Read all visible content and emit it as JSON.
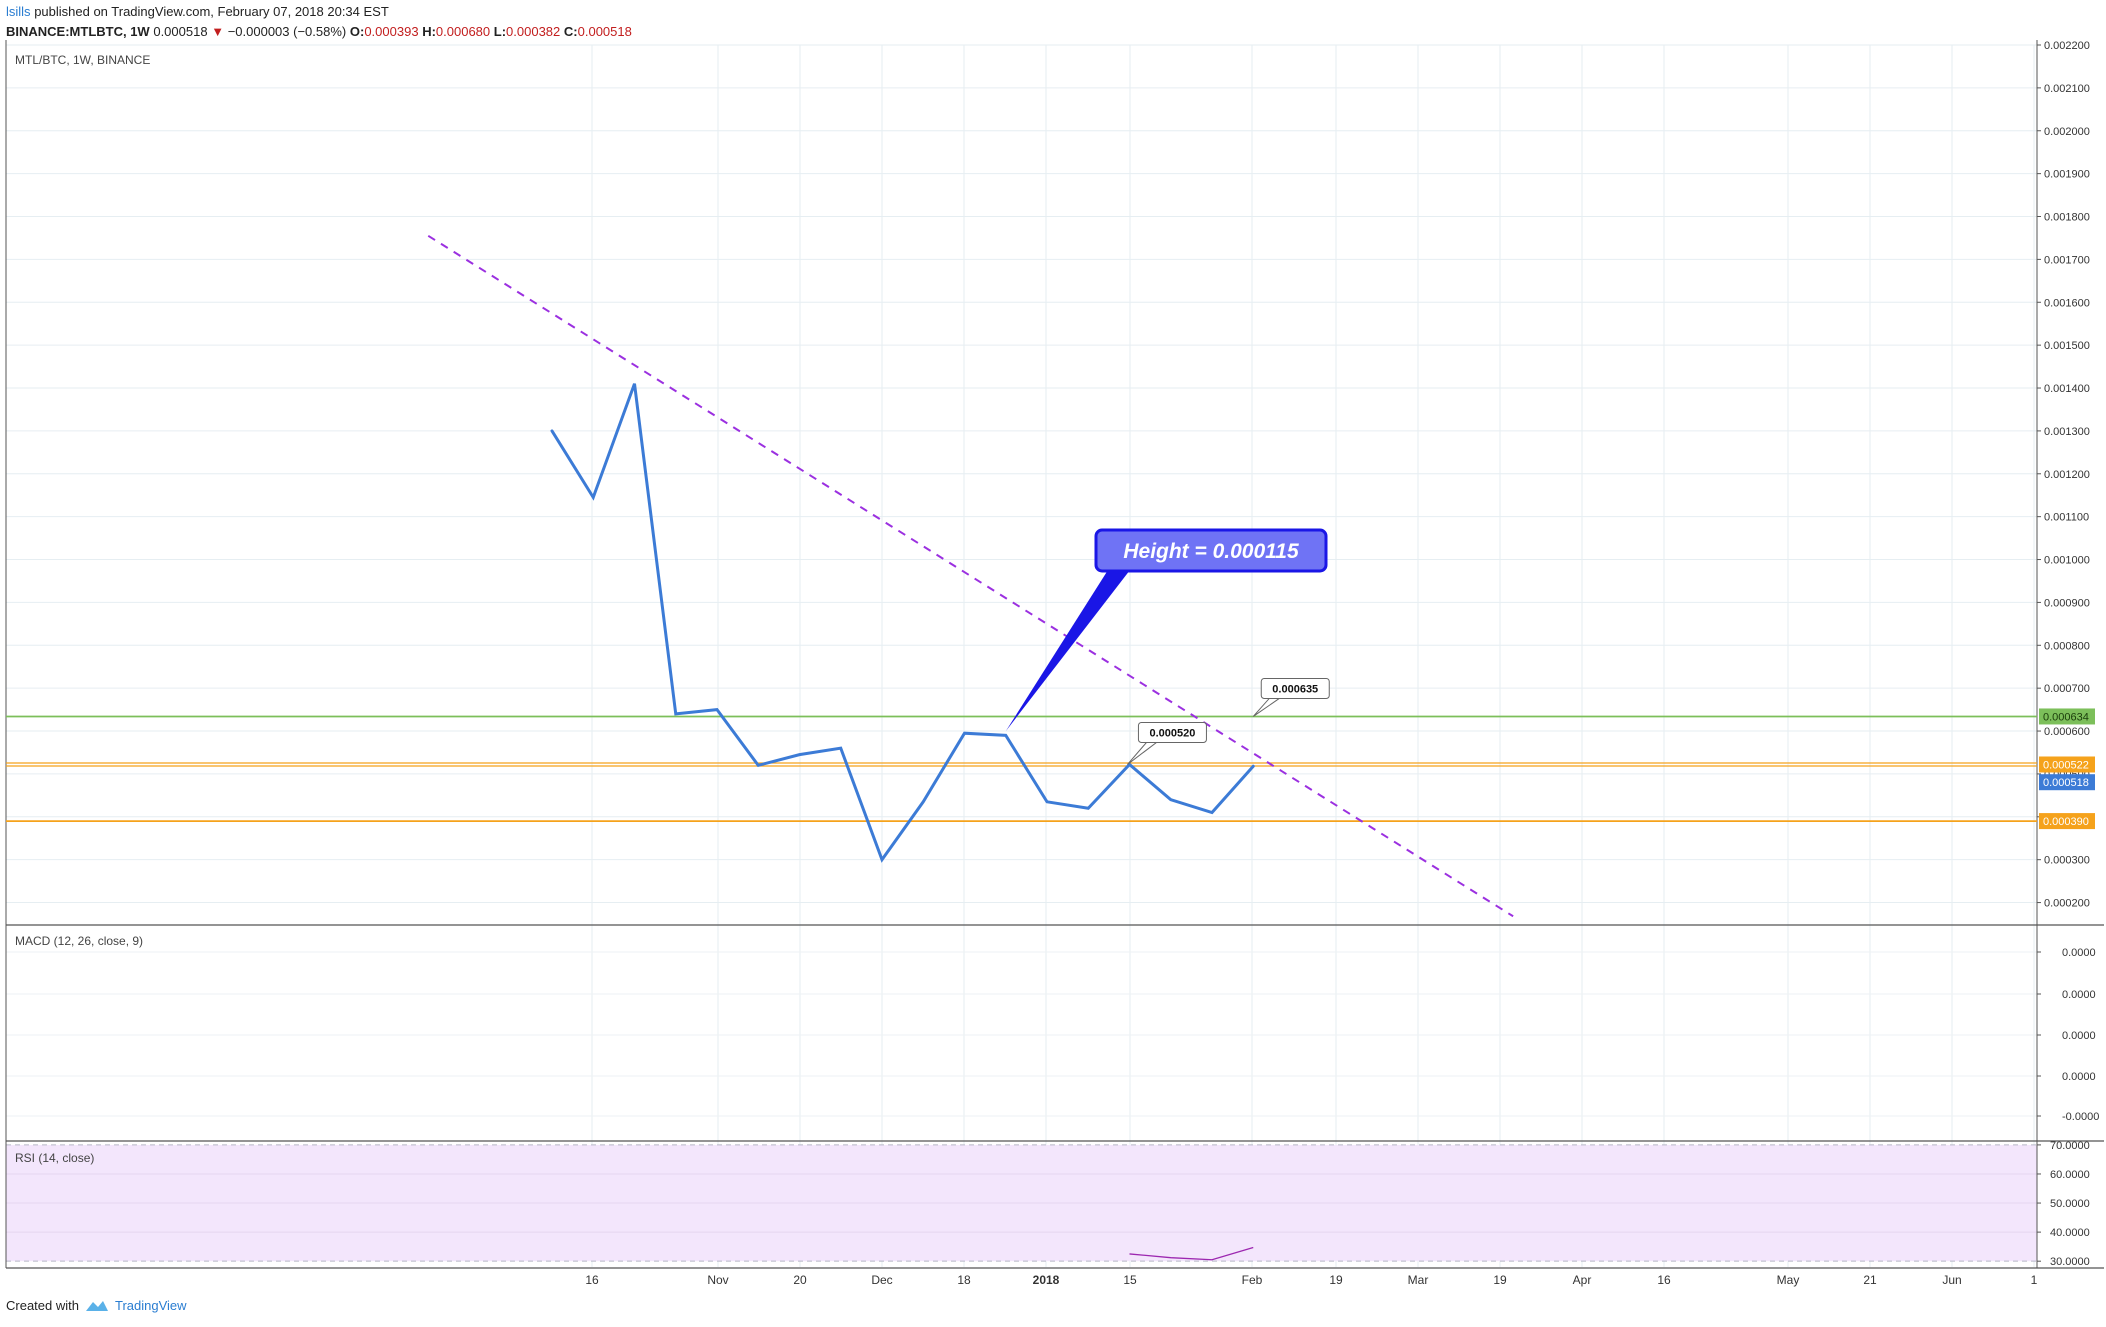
{
  "header": {
    "user": "lsills",
    "published": "published on TradingView.com, February 07, 2018 20:34 EST",
    "symbol": "BINANCE:MTLBTC, 1W",
    "last": "0.000518",
    "arrow": "▼",
    "change": "−0.000003 (−0.58%)",
    "o_label": "O:",
    "o_value": "0.000393",
    "h_label": "H:",
    "h_value": "0.000680",
    "l_label": "L:",
    "l_value": "0.000382",
    "c_label": "C:",
    "c_value": "0.000518"
  },
  "footer": {
    "created_with": "Created with",
    "brand": "TradingView"
  },
  "colors": {
    "price_line": "#3c7bd6",
    "trend_line": "#9b30e0",
    "green_level": "#7cbf5a",
    "orange_level": "#f5a21b",
    "callout_fill": "#6f73f5",
    "callout_border": "#1a16e6",
    "rsi_fill": "#f3e6fc",
    "rsi_line": "#9c27b0"
  },
  "chart_data": {
    "type": "line",
    "panes": {
      "main": {
        "label": "MTL/BTC, 1W, BINANCE",
        "ylim": [
          0.00015,
          0.0022
        ]
      },
      "macd": {
        "label": "MACD (12, 26, close, 9)",
        "ticks": [
          "0.0000",
          "0.0000",
          "0.0000",
          "0.0000",
          "-0.0000"
        ]
      },
      "rsi": {
        "label": "RSI (14, close)",
        "ylim": [
          28,
          71
        ],
        "band": [
          30,
          70
        ]
      }
    },
    "price_ticks": [
      0.0002,
      0.0003,
      0.0004,
      0.0005,
      0.0006,
      0.0007,
      0.0008,
      0.0009,
      0.001,
      0.0011,
      0.0012,
      0.0013,
      0.0014,
      0.0015,
      0.0016,
      0.0017,
      0.0018,
      0.0019,
      0.002,
      0.0021,
      0.0022
    ],
    "rsi_ticks": [
      30,
      40,
      50,
      60,
      70
    ],
    "x_tick_labels": [
      "16",
      "Nov",
      "20",
      "Dec",
      "18",
      "2018",
      "15",
      "Feb",
      "19",
      "Mar",
      "19",
      "Apr",
      "16",
      "May",
      "21",
      "Jun",
      "1"
    ],
    "x": [
      0,
      1,
      2,
      3,
      4,
      5,
      6,
      7,
      8,
      9,
      10,
      11,
      12,
      13,
      14,
      15,
      16,
      17
    ],
    "close": [
      0.0013,
      0.001145,
      0.00141,
      0.00064,
      0.00065,
      0.00052,
      0.000545,
      0.00056,
      0.0003,
      0.000435,
      0.000595,
      0.00059,
      0.000435,
      0.00042,
      0.000522,
      0.00044,
      0.00041,
      0.000518
    ],
    "rsi": [
      {
        "x": 14,
        "y": 32.5
      },
      {
        "x": 15,
        "y": 31.2
      },
      {
        "x": 16,
        "y": 30.5
      },
      {
        "x": 17,
        "y": 34.7
      }
    ],
    "levels": [
      {
        "value": 0.000634,
        "label": "0.000634",
        "color": "#7cbf5a",
        "style": "solid"
      },
      {
        "value": 0.000522,
        "label": "0.000522",
        "color": "#f5a21b",
        "style": "double"
      },
      {
        "value": 0.00039,
        "label": "0.000390",
        "color": "#f5a21b",
        "style": "solid"
      }
    ],
    "last_price_label": "0.000518",
    "trendline": [
      {
        "x": -3,
        "y": 0.001755
      },
      {
        "x": 23.3,
        "y": 0.000168
      }
    ],
    "annotations": [
      {
        "text": "Height = 0.000115",
        "anchor": {
          "x": 11,
          "y": 0.000595
        }
      },
      {
        "text": "0.000520",
        "anchor": {
          "x": 13.95,
          "y": 0.000522
        }
      },
      {
        "text": "0.000635",
        "anchor": {
          "x": 17,
          "y": 0.000634
        }
      }
    ]
  }
}
